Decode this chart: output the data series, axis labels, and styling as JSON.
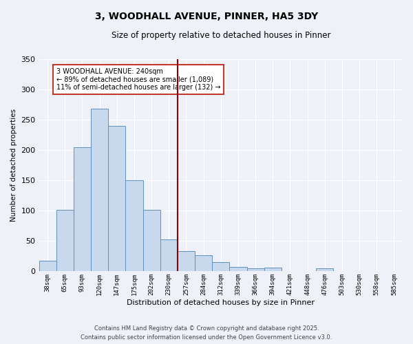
{
  "title": "3, WOODHALL AVENUE, PINNER, HA5 3DY",
  "subtitle": "Size of property relative to detached houses in Pinner",
  "xlabel": "Distribution of detached houses by size in Pinner",
  "ylabel": "Number of detached properties",
  "bar_labels": [
    "38sqm",
    "65sqm",
    "93sqm",
    "120sqm",
    "147sqm",
    "175sqm",
    "202sqm",
    "230sqm",
    "257sqm",
    "284sqm",
    "312sqm",
    "339sqm",
    "366sqm",
    "394sqm",
    "421sqm",
    "448sqm",
    "476sqm",
    "503sqm",
    "530sqm",
    "558sqm",
    "585sqm"
  ],
  "bar_values": [
    18,
    101,
    204,
    268,
    240,
    150,
    101,
    53,
    33,
    26,
    15,
    7,
    5,
    6,
    1,
    0,
    5,
    1,
    0,
    0,
    1
  ],
  "bar_color": "#c8d8ed",
  "bar_edge_color": "#6090c0",
  "vline_index": 7.5,
  "vline_color": "#8b0000",
  "annotation_text": "3 WOODHALL AVENUE: 240sqm\n← 89% of detached houses are smaller (1,089)\n11% of semi-detached houses are larger (132) →",
  "annotation_box_edge": "#c0392b",
  "ylim": [
    0,
    350
  ],
  "yticks": [
    0,
    50,
    100,
    150,
    200,
    250,
    300,
    350
  ],
  "bg_color": "#eef2f8",
  "grid_color": "#ffffff",
  "footer_line1": "Contains HM Land Registry data © Crown copyright and database right 2025.",
  "footer_line2": "Contains public sector information licensed under the Open Government Licence v3.0."
}
